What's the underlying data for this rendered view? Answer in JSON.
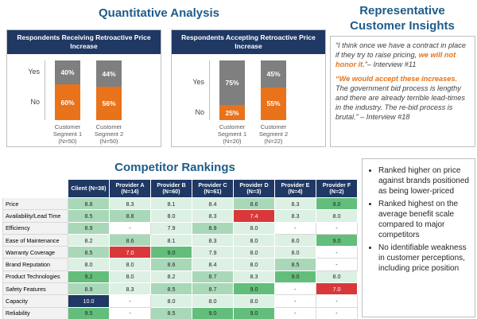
{
  "title": "Quantitative Analysis",
  "chart_data": [
    {
      "type": "stacked_bar",
      "title": "Respondents Receiving Retroactive Price Increase",
      "categories": [
        "Customer Segment 1 (N=50)",
        "Customer Segment 2 (N=50)"
      ],
      "series": [
        {
          "name": "No",
          "color": "#e8731a",
          "values": [
            60,
            56
          ],
          "value_labels": [
            "60%",
            "56%"
          ]
        },
        {
          "name": "Yes",
          "color": "#7f7f7f",
          "values": [
            40,
            44
          ],
          "value_labels": [
            "40%",
            "44%"
          ]
        }
      ],
      "ylim": [
        0,
        100
      ]
    },
    {
      "type": "stacked_bar",
      "title": "Respondents Accepting Retroactive Price Increase",
      "categories": [
        "Customer Segment 1 (N=20)",
        "Customer Segment 2 (N=22)"
      ],
      "series": [
        {
          "name": "No",
          "color": "#e8731a",
          "values": [
            25,
            55
          ],
          "value_labels": [
            "25%",
            "55%"
          ]
        },
        {
          "name": "Yes",
          "color": "#7f7f7f",
          "values": [
            75,
            45
          ],
          "value_labels": [
            "75%",
            "45%"
          ]
        }
      ],
      "ylim": [
        0,
        100
      ]
    }
  ],
  "insights": {
    "title": "Representative Customer Insights",
    "quotes": [
      {
        "parts": [
          {
            "text": "“I think once we have a contract in place if they try to raise pricing, ",
            "emphasis": false
          },
          {
            "text": "we will not honor it.",
            "emphasis": true
          },
          {
            "text": "”– Interview #11",
            "emphasis": false
          }
        ]
      },
      {
        "parts": [
          {
            "text": "“We would accept these increases.",
            "emphasis": true
          },
          {
            "text": " The government bid process is lengthy and there are already terrible lead-times in the industry. The re-bid process is brutal.” – Interview #18",
            "emphasis": false
          }
        ]
      }
    ]
  },
  "rankings": {
    "title": "Competitor Rankings",
    "header": [
      "Client (N=38)",
      "Provider A (N=14)",
      "Provider B (N=60)",
      "Provider C (N=61)",
      "Provider D (N=3)",
      "Provider E (N=4)",
      "Provider F (N=2)"
    ],
    "rows": [
      [
        "Price",
        "8.8",
        "8.3",
        "8.1",
        "8.4",
        "8.6",
        "8.3",
        "9.0"
      ],
      [
        "Availability/Lead Time",
        "8.5",
        "8.8",
        "8.0",
        "8.3",
        "7.4",
        "8.3",
        "8.0"
      ],
      [
        "Efficiency",
        "8.9",
        "-",
        "7.9",
        "8.9",
        "8.0",
        "-",
        "-"
      ],
      [
        "Ease of Maintenance",
        "8.2",
        "8.6",
        "8.1",
        "8.3",
        "8.0",
        "8.0",
        "9.0"
      ],
      [
        "Warranty Coverage",
        "8.5",
        "7.0",
        "9.0",
        "7.9",
        "8.0",
        "8.0",
        "-"
      ],
      [
        "Brand Reputation",
        "8.0",
        "8.0",
        "8.6",
        "8.4",
        "8.0",
        "8.5",
        "-"
      ],
      [
        "Product Technologies",
        "9.2",
        "8.0",
        "8.2",
        "8.7",
        "8.3",
        "9.0",
        "8.0"
      ],
      [
        "Safety Features",
        "8.9",
        "8.3",
        "8.5",
        "8.7",
        "9.0",
        "-",
        "7.0"
      ],
      [
        "Capacity",
        "10.0",
        "-",
        "8.0",
        "8.0",
        "8.0",
        "-",
        "-"
      ],
      [
        "Reliability",
        "9.5",
        "-",
        "8.5",
        "9.0",
        "9.0",
        "-",
        "-"
      ]
    ]
  },
  "bullets": [
    "Ranked higher on price against brands positioned as being lower-priced",
    "Ranked highest on the average benefit scale compared to major competitors",
    "No identifiable weakness in customer perceptions, including price position"
  ]
}
